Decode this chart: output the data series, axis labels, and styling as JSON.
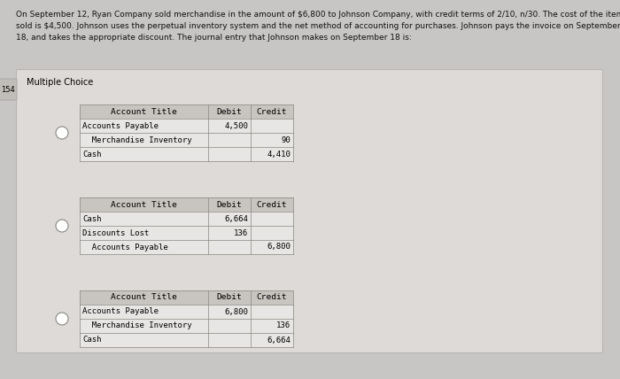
{
  "bg_top_color": "#c8c6c4",
  "bg_panel_color": "#dedad8",
  "bg_panel_inner_color": "#e8e6e4",
  "table_header_color": "#c8c4c0",
  "table_row_color": "#e8e6e4",
  "text_color": "#111111",
  "title_text_line1": "On September 12, Ryan Company sold merchandise in the amount of $6,800 to Johnson Company, with credit terms of 2/10, n/30. The cost of the items",
  "title_text_line2": "sold is $4,500. Johnson uses the perpetual inventory system and the net method of accounting for purchases. Johnson pays the invoice on September",
  "title_text_line3": "18, and takes the appropriate discount. The journal entry that Johnson makes on September 18 is:",
  "multiple_choice_label": "Multiple Choice",
  "page_label": "154",
  "options": [
    {
      "rows": [
        {
          "account": "Accounts Payable",
          "debit": "4,500",
          "credit": "",
          "indent": false
        },
        {
          "account": "  Merchandise Inventory",
          "debit": "",
          "credit": "90",
          "indent": true
        },
        {
          "account": "Cash",
          "debit": "",
          "credit": "4,410",
          "indent": false
        }
      ]
    },
    {
      "rows": [
        {
          "account": "Cash",
          "debit": "6,664",
          "credit": "",
          "indent": false
        },
        {
          "account": "Discounts Lost",
          "debit": "136",
          "credit": "",
          "indent": false
        },
        {
          "account": "  Accounts Payable",
          "debit": "",
          "credit": "6,800",
          "indent": true
        }
      ]
    },
    {
      "rows": [
        {
          "account": "Accounts Payable",
          "debit": "6,800",
          "credit": "",
          "indent": false
        },
        {
          "account": "  Merchandise Inventory",
          "debit": "",
          "credit": "136",
          "indent": true
        },
        {
          "account": "Cash",
          "debit": "",
          "credit": "6,664",
          "indent": false
        }
      ]
    }
  ],
  "col_header": [
    "Account Title",
    "Debit",
    "Credit"
  ],
  "font_size": 6.5,
  "header_font_size": 6.8,
  "title_font_size": 6.5
}
